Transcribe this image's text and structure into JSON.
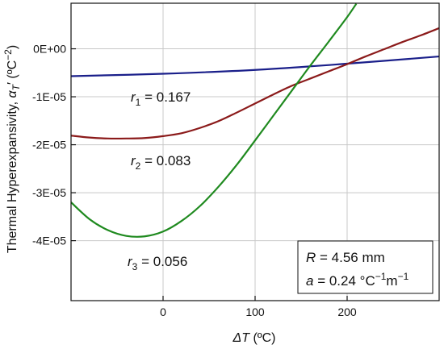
{
  "chart_data": {
    "type": "line",
    "xlabel": {
      "symbol": "ΔT",
      "unit": " (ºC)"
    },
    "ylabel": {
      "text": "Thermal Hyperexpansivity, ",
      "symbol": "α",
      "sub": "T",
      "prime": "′",
      "unit_open": " (ºC",
      "unit_exp": "−2",
      "unit_close": ")"
    },
    "xlim": [
      -100,
      300
    ],
    "ylim": [
      -5.25e-05,
      9.5e-06
    ],
    "x_ticks": [
      0,
      100,
      200
    ],
    "y_ticks": [
      0,
      -1e-05,
      -2e-05,
      -3e-05,
      -4e-05
    ],
    "x_tick_labels": [
      "0",
      "100",
      "200"
    ],
    "y_tick_labels": [
      "0E+00",
      "-1E-05",
      "-2E-05",
      "-3E-05",
      "-4E-05"
    ],
    "grid": true,
    "series": [
      {
        "label": {
          "sym": "r",
          "sub": "1",
          "rest": " = 0.167"
        },
        "color": "#1a1f8a",
        "x": [
          -100,
          0,
          100,
          200,
          300
        ],
        "y": [
          -5.7e-06,
          -5.2e-06,
          -4.4e-06,
          -3.1e-06,
          -1.6e-06
        ]
      },
      {
        "label": {
          "sym": "r",
          "sub": "2",
          "rest": " = 0.083"
        },
        "color": "#8b1a1a",
        "x": [
          -100,
          -80,
          -60,
          -40,
          -20,
          0,
          20,
          40,
          60,
          80,
          100,
          120,
          140,
          160,
          180,
          200,
          220,
          240,
          260,
          280,
          300
        ],
        "y": [
          -1.81e-05,
          -1.85e-05,
          -1.87e-05,
          -1.87e-05,
          -1.86e-05,
          -1.82e-05,
          -1.76e-05,
          -1.65e-05,
          -1.51e-05,
          -1.33e-05,
          -1.14e-05,
          -9.5e-06,
          -7.7e-06,
          -6.2e-06,
          -4.7e-06,
          -3.2e-06,
          -1.6e-06,
          -1e-07,
          1.4e-06,
          2.8e-06,
          4.3e-06
        ]
      },
      {
        "label": {
          "sym": "r",
          "sub": "3",
          "rest": " = 0.056"
        },
        "color": "#1f8a1f",
        "x": [
          -100,
          -80,
          -60,
          -40,
          -20,
          0,
          20,
          40,
          60,
          80,
          100,
          120,
          140,
          160,
          180,
          200,
          210
        ],
        "y": [
          -3.2e-05,
          -3.55e-05,
          -3.78e-05,
          -3.9e-05,
          -3.91e-05,
          -3.81e-05,
          -3.59e-05,
          -3.28e-05,
          -2.88e-05,
          -2.42e-05,
          -1.91e-05,
          -1.39e-05,
          -8.7e-06,
          -3.5e-06,
          1.5e-06,
          6.6e-06,
          9.4e-06
        ]
      }
    ],
    "inset": {
      "line1": {
        "sym": "R",
        "rest": " = 4.56 mm"
      },
      "line2": {
        "sym": "a",
        "rest": " = 0.24 °C",
        "e1": "−1",
        "mid": "m",
        "e2": "−1"
      }
    }
  }
}
